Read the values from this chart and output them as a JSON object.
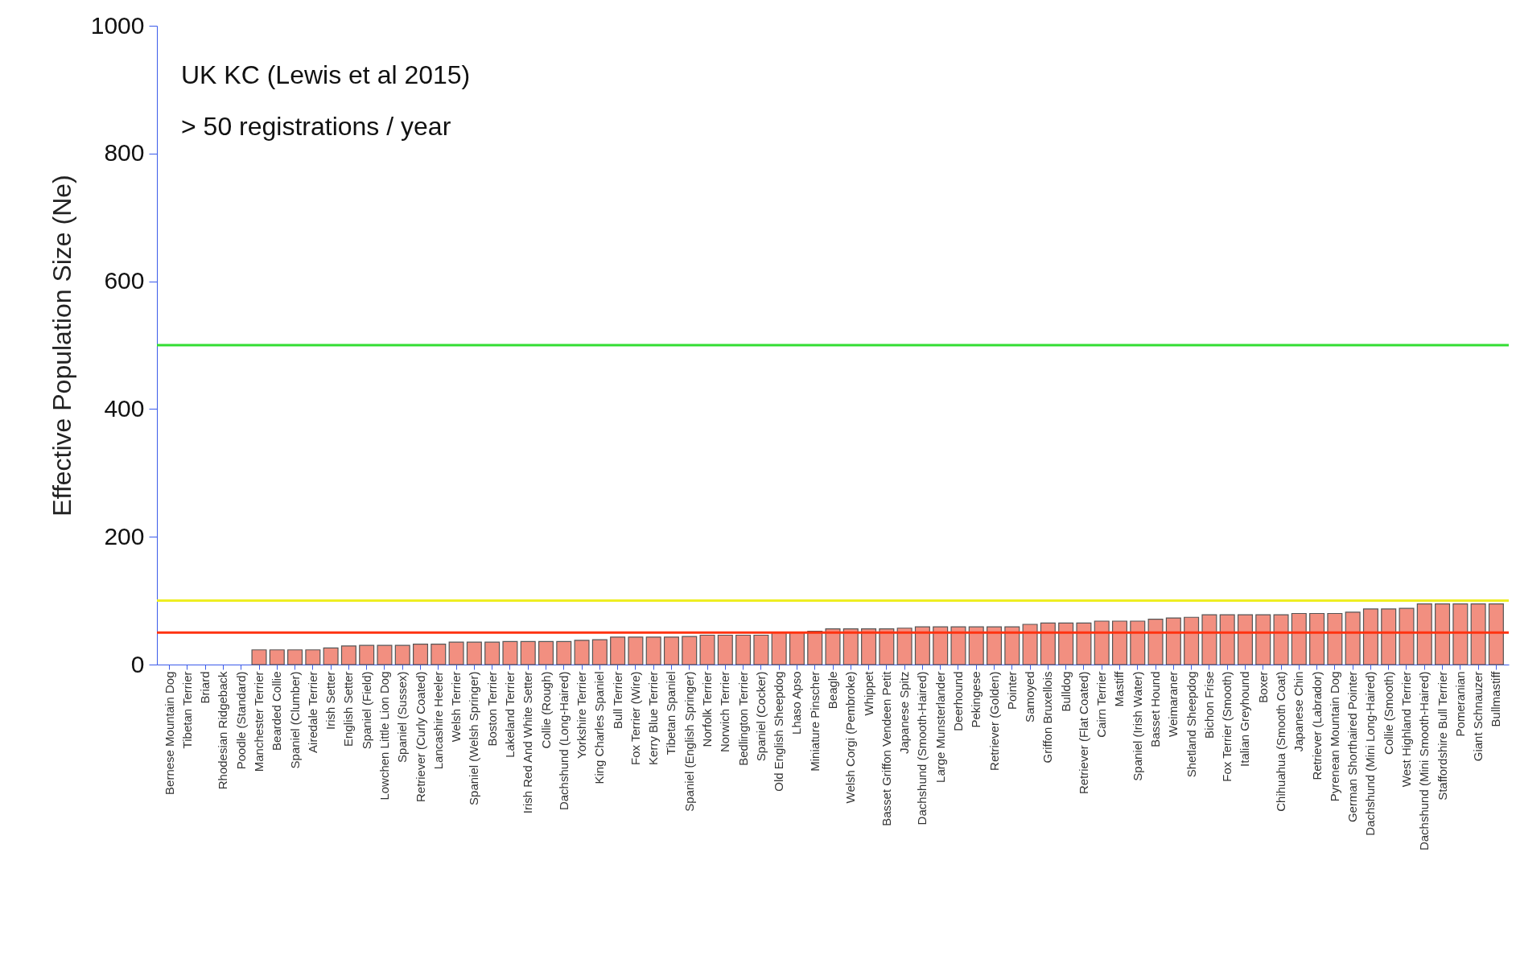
{
  "chart_data": {
    "type": "bar",
    "ylabel": "Effective Population Size (Ne)",
    "annotations": [
      "UK KC  (Lewis et al 2015)",
      "> 50 registrations / year"
    ],
    "categories": [
      "Bernese Mountain Dog",
      "Tibetan Terrier",
      "Briard",
      "Rhodesian Ridgeback",
      "Poodle (Standard)",
      "Manchester Terrier",
      "Bearded Collie",
      "Spaniel (Clumber)",
      "Airedale Terrier",
      "Irish Setter",
      "English Setter",
      "Spaniel (Field)",
      "Lowchen Little Lion Dog",
      "Spaniel (Sussex)",
      "Retriever (Curly Coated)",
      "Lancashire Heeler",
      "Welsh Terrier",
      "Spaniel (Welsh Springer)",
      "Boston Terrier",
      "Lakeland Terrier",
      "Irish Red And White Setter",
      "Collie (Rough)",
      "Dachshund (Long-Haired)",
      "Yorkshire Terrier",
      "King Charles Spaniel",
      "Bull Terrier",
      "Fox Terrier (Wire)",
      "Kerry Blue Terrier",
      "Tibetan Spaniel",
      "Spaniel (English Springer)",
      "Norfolk Terrier",
      "Norwich Terrier",
      "Bedlington Terrier",
      "Spaniel (Cocker)",
      "Old English Sheepdog",
      "Lhaso Apso",
      "Miniature Pinscher",
      "Beagle",
      "Welsh Corgi (Pembroke)",
      "Whippet",
      "Basset Griffon Vendeen Petit",
      "Japanese Spitz",
      "Dachshund (Smooth-Haired)",
      "Large Munsterlander",
      "Deerhound",
      "Pekingese",
      "Retriever (Golden)",
      "Pointer",
      "Samoyed",
      "Griffon Bruxellois",
      "Bulldog",
      "Retriever (Flat Coated)",
      "Cairn Terrier",
      "Mastiff",
      "Spaniel (Irish Water)",
      "Basset Hound",
      "Weimaraner",
      "Shetland Sheepdog",
      "Bichon Frise",
      "Fox Terrier (Smooth)",
      "Italian Greyhound",
      "Boxer",
      "Chihuahua (Smooth Coat)",
      "Japanese Chin",
      "Retriever (Labrador)",
      "Pyrenean Mountain Dog",
      "German Shorthaired Pointer",
      "Dachshund (Mini Long-Haired)",
      "Collie (Smooth)",
      "West Highland Terrier",
      "Dachshund (Mini Smooth-Haired)",
      "Staffordshire Bull Terrier",
      "Pomeranian",
      "Giant Schnauzer",
      "Bullmastiff"
    ],
    "values": [
      null,
      null,
      null,
      null,
      null,
      23,
      23,
      23,
      23,
      26,
      29,
      30,
      30,
      30,
      32,
      32,
      35,
      35,
      35,
      36,
      36,
      36,
      36,
      38,
      39,
      43,
      43,
      43,
      43,
      44,
      46,
      46,
      46,
      46,
      51,
      51,
      52,
      56,
      56,
      56,
      56,
      57,
      59,
      59,
      59,
      59,
      59,
      59,
      63,
      65,
      65,
      65,
      68,
      68,
      68,
      71,
      73,
      74,
      78,
      78,
      78,
      78,
      78,
      80,
      80,
      80,
      82,
      87,
      87,
      88,
      95,
      95,
      95,
      95,
      95
    ],
    "color": "#f28f80",
    "ylim": [
      0,
      1000
    ],
    "yticks": [
      0,
      200,
      400,
      600,
      800,
      1000
    ],
    "ref_lines": [
      {
        "axis": "y",
        "value": 500,
        "color": "#33dd33"
      },
      {
        "axis": "y",
        "value": 100,
        "color": "#eeee22"
      },
      {
        "axis": "y",
        "value": 50,
        "color": "#ff3311"
      }
    ],
    "grid": false
  }
}
